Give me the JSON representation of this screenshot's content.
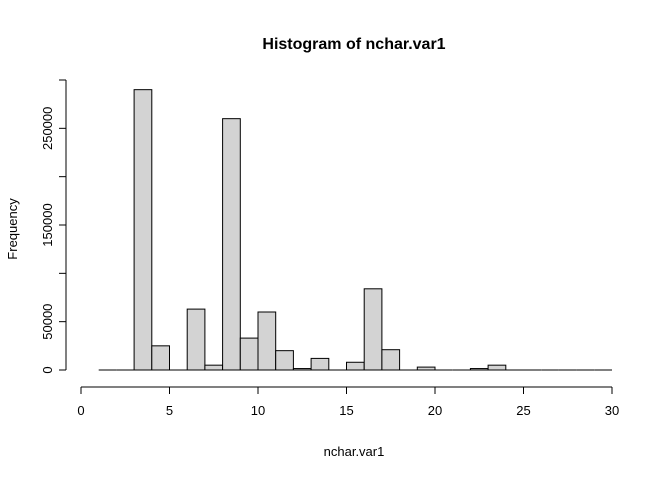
{
  "chart_data": {
    "type": "bar",
    "title": "Histogram of nchar.var1",
    "xlabel": "nchar.var1",
    "ylabel": "Frequency",
    "xlim": [
      0,
      30
    ],
    "ylim": [
      0,
      300000
    ],
    "bin_width": 1,
    "bin_start": [
      1,
      2,
      3,
      4,
      5,
      6,
      7,
      8,
      9,
      10,
      11,
      12,
      13,
      14,
      15,
      16,
      17,
      18,
      19,
      20,
      21,
      22,
      23,
      24,
      25,
      26,
      27,
      28,
      29
    ],
    "values": [
      0,
      0,
      290000,
      25000,
      0,
      63000,
      5000,
      260000,
      33000,
      60000,
      20000,
      1500,
      12000,
      0,
      8000,
      84000,
      21000,
      0,
      3000,
      0,
      0,
      1500,
      5000,
      0,
      0,
      0,
      0,
      0,
      0
    ],
    "x_ticks": [
      "0",
      "5",
      "10",
      "15",
      "20",
      "25",
      "30"
    ],
    "y_ticks": [
      "0",
      "50000",
      "150000",
      "250000"
    ],
    "y_tick_values": [
      0,
      50000,
      100000,
      150000,
      200000,
      250000,
      300000
    ],
    "bar_fill": "#d3d3d3",
    "bar_stroke": "#000000",
    "grid": false
  }
}
